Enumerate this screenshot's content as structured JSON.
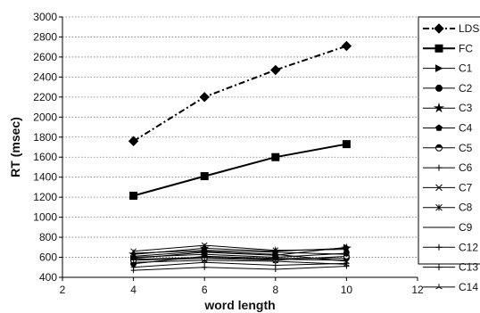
{
  "chart_data": {
    "type": "line",
    "xlabel": "word length",
    "ylabel": "RT (msec)",
    "xlim": [
      2,
      12
    ],
    "ylim": [
      400,
      3000
    ],
    "xticks": [
      2,
      4,
      6,
      8,
      10,
      12
    ],
    "yticks": [
      400,
      600,
      800,
      1000,
      1200,
      1400,
      1600,
      1800,
      2000,
      2200,
      2400,
      2600,
      2800,
      3000
    ],
    "grid": "horizontal dotted",
    "legend_position": "right",
    "x": [
      4,
      6,
      8,
      10
    ],
    "series": [
      {
        "name": "LDS",
        "values": [
          1760,
          2200,
          2470,
          2710
        ],
        "marker": "diamond",
        "dash": "dashdot",
        "width": 2
      },
      {
        "name": "FC",
        "values": [
          1215,
          1410,
          1600,
          1730
        ],
        "marker": "square",
        "dash": "solid",
        "width": 2
      },
      {
        "name": "C1",
        "values": [
          590,
          650,
          620,
          700
        ],
        "marker": "triangle-right",
        "dash": "solid",
        "width": 1
      },
      {
        "name": "C2",
        "values": [
          535,
          610,
          590,
          590
        ],
        "marker": "circle",
        "dash": "solid",
        "width": 1
      },
      {
        "name": "C3",
        "values": [
          630,
          690,
          660,
          690
        ],
        "marker": "star",
        "dash": "solid",
        "width": 1
      },
      {
        "name": "C4",
        "values": [
          600,
          630,
          600,
          640
        ],
        "marker": "pentagon",
        "dash": "solid",
        "width": 1
      },
      {
        "name": "C5",
        "values": [
          570,
          590,
          570,
          610
        ],
        "marker": "half-circle",
        "dash": "solid",
        "width": 1
      },
      {
        "name": "C6",
        "values": [
          500,
          550,
          520,
          540
        ],
        "marker": "plus",
        "dash": "solid",
        "width": 1
      },
      {
        "name": "C7",
        "values": [
          660,
          720,
          670,
          680
        ],
        "marker": "x",
        "dash": "solid",
        "width": 1
      },
      {
        "name": "C8",
        "values": [
          610,
          660,
          630,
          560
        ],
        "marker": "asterisk",
        "dash": "solid",
        "width": 1
      },
      {
        "name": "C9",
        "values": [
          580,
          600,
          580,
          570
        ],
        "marker": "none",
        "dash": "solid",
        "width": 1
      },
      {
        "name": "C12",
        "values": [
          470,
          500,
          480,
          510
        ],
        "marker": "plus",
        "dash": "solid",
        "width": 1
      },
      {
        "name": "C13",
        "values": [
          640,
          670,
          650,
          630
        ],
        "marker": "plus",
        "dash": "solid",
        "width": 1
      },
      {
        "name": "C14",
        "values": [
          550,
          570,
          560,
          530
        ],
        "marker": "tri",
        "dash": "solid",
        "width": 1
      }
    ]
  }
}
